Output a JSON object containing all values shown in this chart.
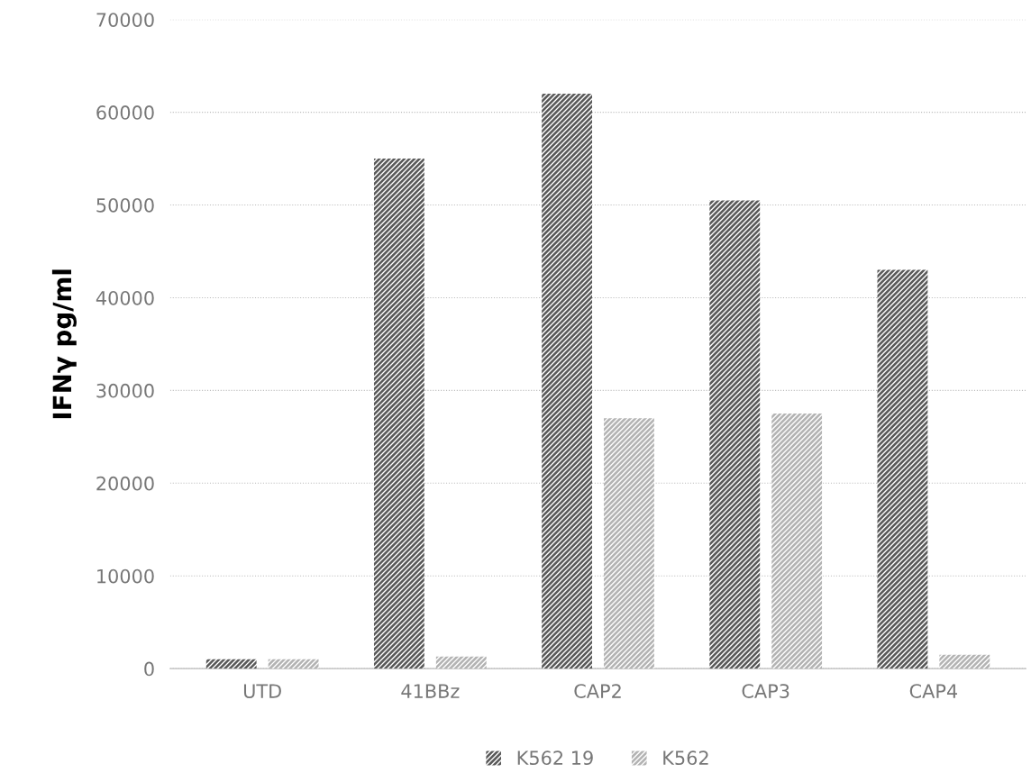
{
  "chart_data": {
    "type": "bar",
    "ylabel": "IFNγ pg/ml",
    "categories": [
      "UTD",
      "41BBz",
      "CAP2",
      "CAP3",
      "CAP4"
    ],
    "series": [
      {
        "name": "K562 19",
        "color": "#595959",
        "values": [
          1000,
          55000,
          62000,
          50500,
          43000
        ]
      },
      {
        "name": "K562",
        "color": "#b3b3b3",
        "values": [
          1000,
          1300,
          27000,
          27500,
          1500
        ]
      }
    ],
    "ylim": [
      0,
      70000
    ],
    "yticks": [
      0,
      10000,
      20000,
      30000,
      40000,
      50000,
      60000,
      70000
    ],
    "grid": "y",
    "legend": "bottom"
  }
}
